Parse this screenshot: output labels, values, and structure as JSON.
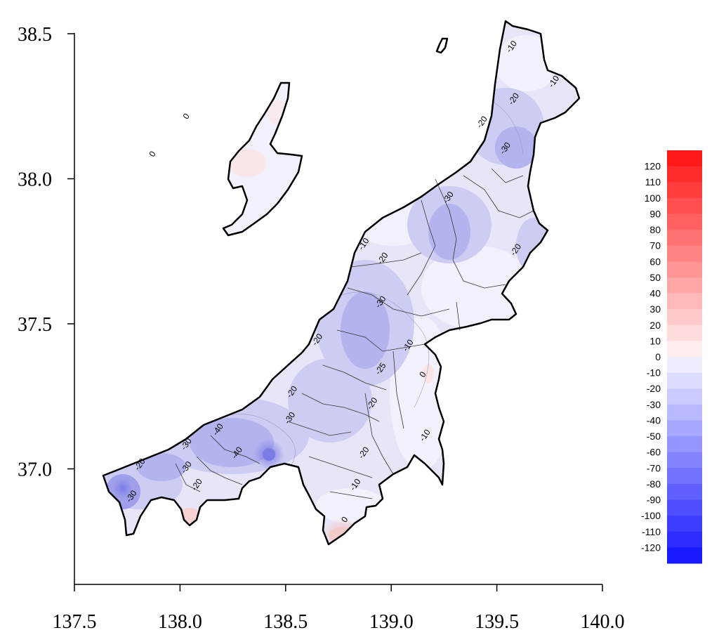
{
  "chart_data": {
    "type": "contour-map",
    "xlim": [
      137.5,
      140.0
    ],
    "ylim": [
      36.6,
      38.55
    ],
    "x_ticks": [
      "137.5",
      "138.0",
      "138.5",
      "139.0",
      "139.5",
      "140.0"
    ],
    "y_ticks": [
      "37.0",
      "37.5",
      "38.0",
      "38.5"
    ],
    "x_tick_values": [
      137.5,
      138.0,
      138.5,
      139.0,
      139.5,
      140.0
    ],
    "y_tick_values": [
      37.0,
      37.5,
      38.0,
      38.5
    ],
    "colorbar": {
      "levels": [
        "120",
        "110",
        "100",
        "90",
        "80",
        "70",
        "60",
        "50",
        "40",
        "30",
        "20",
        "10",
        "0",
        "-10",
        "-20",
        "-30",
        "-40",
        "-50",
        "-60",
        "-70",
        "-80",
        "-90",
        "-100",
        "-110",
        "-120"
      ],
      "high_color": "#ff1a1a",
      "zero_color": "#ffffff",
      "low_color": "#1a1aff"
    },
    "contour_labels": [
      {
        "text": "-10",
        "lon": 139.58,
        "lat": 38.45
      },
      {
        "text": "-10",
        "lon": 139.78,
        "lat": 38.33
      },
      {
        "text": "-20",
        "lon": 139.59,
        "lat": 38.27
      },
      {
        "text": "-20",
        "lon": 139.44,
        "lat": 38.19
      },
      {
        "text": "-30",
        "lon": 139.55,
        "lat": 38.1
      },
      {
        "text": "-30",
        "lon": 139.28,
        "lat": 37.93
      },
      {
        "text": "-10",
        "lon": 138.88,
        "lat": 37.77
      },
      {
        "text": "-20",
        "lon": 139.6,
        "lat": 37.75
      },
      {
        "text": "-20",
        "lon": 138.97,
        "lat": 37.72
      },
      {
        "text": "-30",
        "lon": 138.96,
        "lat": 37.57
      },
      {
        "text": "-20",
        "lon": 138.66,
        "lat": 37.44
      },
      {
        "text": "-10",
        "lon": 139.09,
        "lat": 37.42
      },
      {
        "text": "-25",
        "lon": 138.96,
        "lat": 37.34
      },
      {
        "text": "0",
        "lon": 139.16,
        "lat": 37.32
      },
      {
        "text": "-20",
        "lon": 138.54,
        "lat": 37.26
      },
      {
        "text": "-20",
        "lon": 138.92,
        "lat": 37.22
      },
      {
        "text": "-30",
        "lon": 138.53,
        "lat": 37.17
      },
      {
        "text": "-40",
        "lon": 138.19,
        "lat": 37.13
      },
      {
        "text": "-30",
        "lon": 138.04,
        "lat": 37.08
      },
      {
        "text": "-40",
        "lon": 138.28,
        "lat": 37.05
      },
      {
        "text": "-20",
        "lon": 138.88,
        "lat": 37.05
      },
      {
        "text": "-10",
        "lon": 139.17,
        "lat": 37.11
      },
      {
        "text": "-20",
        "lon": 137.82,
        "lat": 37.01
      },
      {
        "text": "-30",
        "lon": 138.04,
        "lat": 37.0
      },
      {
        "text": "-20",
        "lon": 138.09,
        "lat": 36.94
      },
      {
        "text": "-30",
        "lon": 137.78,
        "lat": 36.9
      },
      {
        "text": "-10",
        "lon": 138.84,
        "lat": 36.94
      },
      {
        "text": "0",
        "lon": 138.79,
        "lat": 36.82
      },
      {
        "text": "0",
        "lon": 138.04,
        "lat": 38.21
      },
      {
        "text": "0",
        "lon": 137.88,
        "lat": 38.08
      }
    ]
  }
}
